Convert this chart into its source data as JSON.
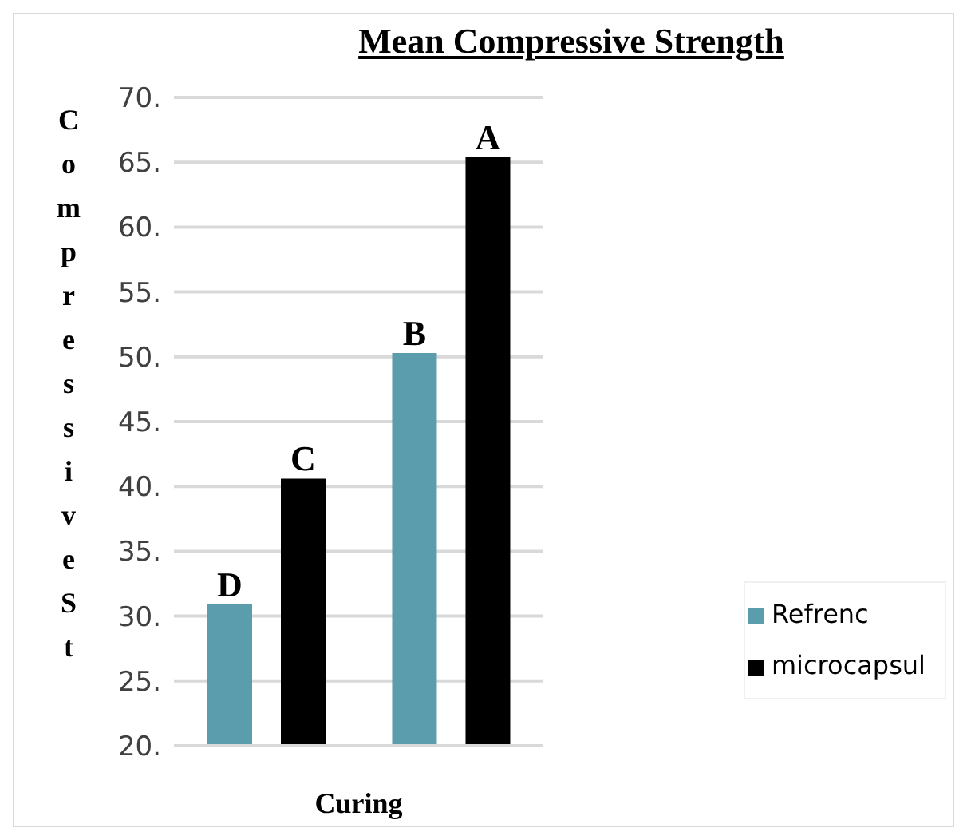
{
  "chart_data": {
    "type": "bar",
    "title": "Mean Compressive Strength",
    "xlabel": "Curing",
    "ylabel": "Compressive St",
    "categories": [
      null,
      null
    ],
    "series": [
      {
        "name": "Refrenc",
        "color": "#5b9cad",
        "values": [
          30.9,
          50.3
        ],
        "value_labels": [
          "D",
          "B"
        ]
      },
      {
        "name": "microcapsul",
        "color": "#000000",
        "values": [
          40.6,
          65.4
        ],
        "value_labels": [
          "C",
          "A"
        ]
      }
    ],
    "ylim": [
      20,
      70
    ],
    "yticks": [
      {
        "value": 20,
        "label": "20."
      },
      {
        "value": 25,
        "label": "25."
      },
      {
        "value": 30,
        "label": "30."
      },
      {
        "value": 35,
        "label": "35."
      },
      {
        "value": 40,
        "label": "40."
      },
      {
        "value": 45,
        "label": "45."
      },
      {
        "value": 50,
        "label": "50."
      },
      {
        "value": 55,
        "label": "55."
      },
      {
        "value": 60,
        "label": "60."
      },
      {
        "value": 65,
        "label": "65."
      },
      {
        "value": 70,
        "label": "70."
      }
    ],
    "grid": "y",
    "legend": "right"
  }
}
